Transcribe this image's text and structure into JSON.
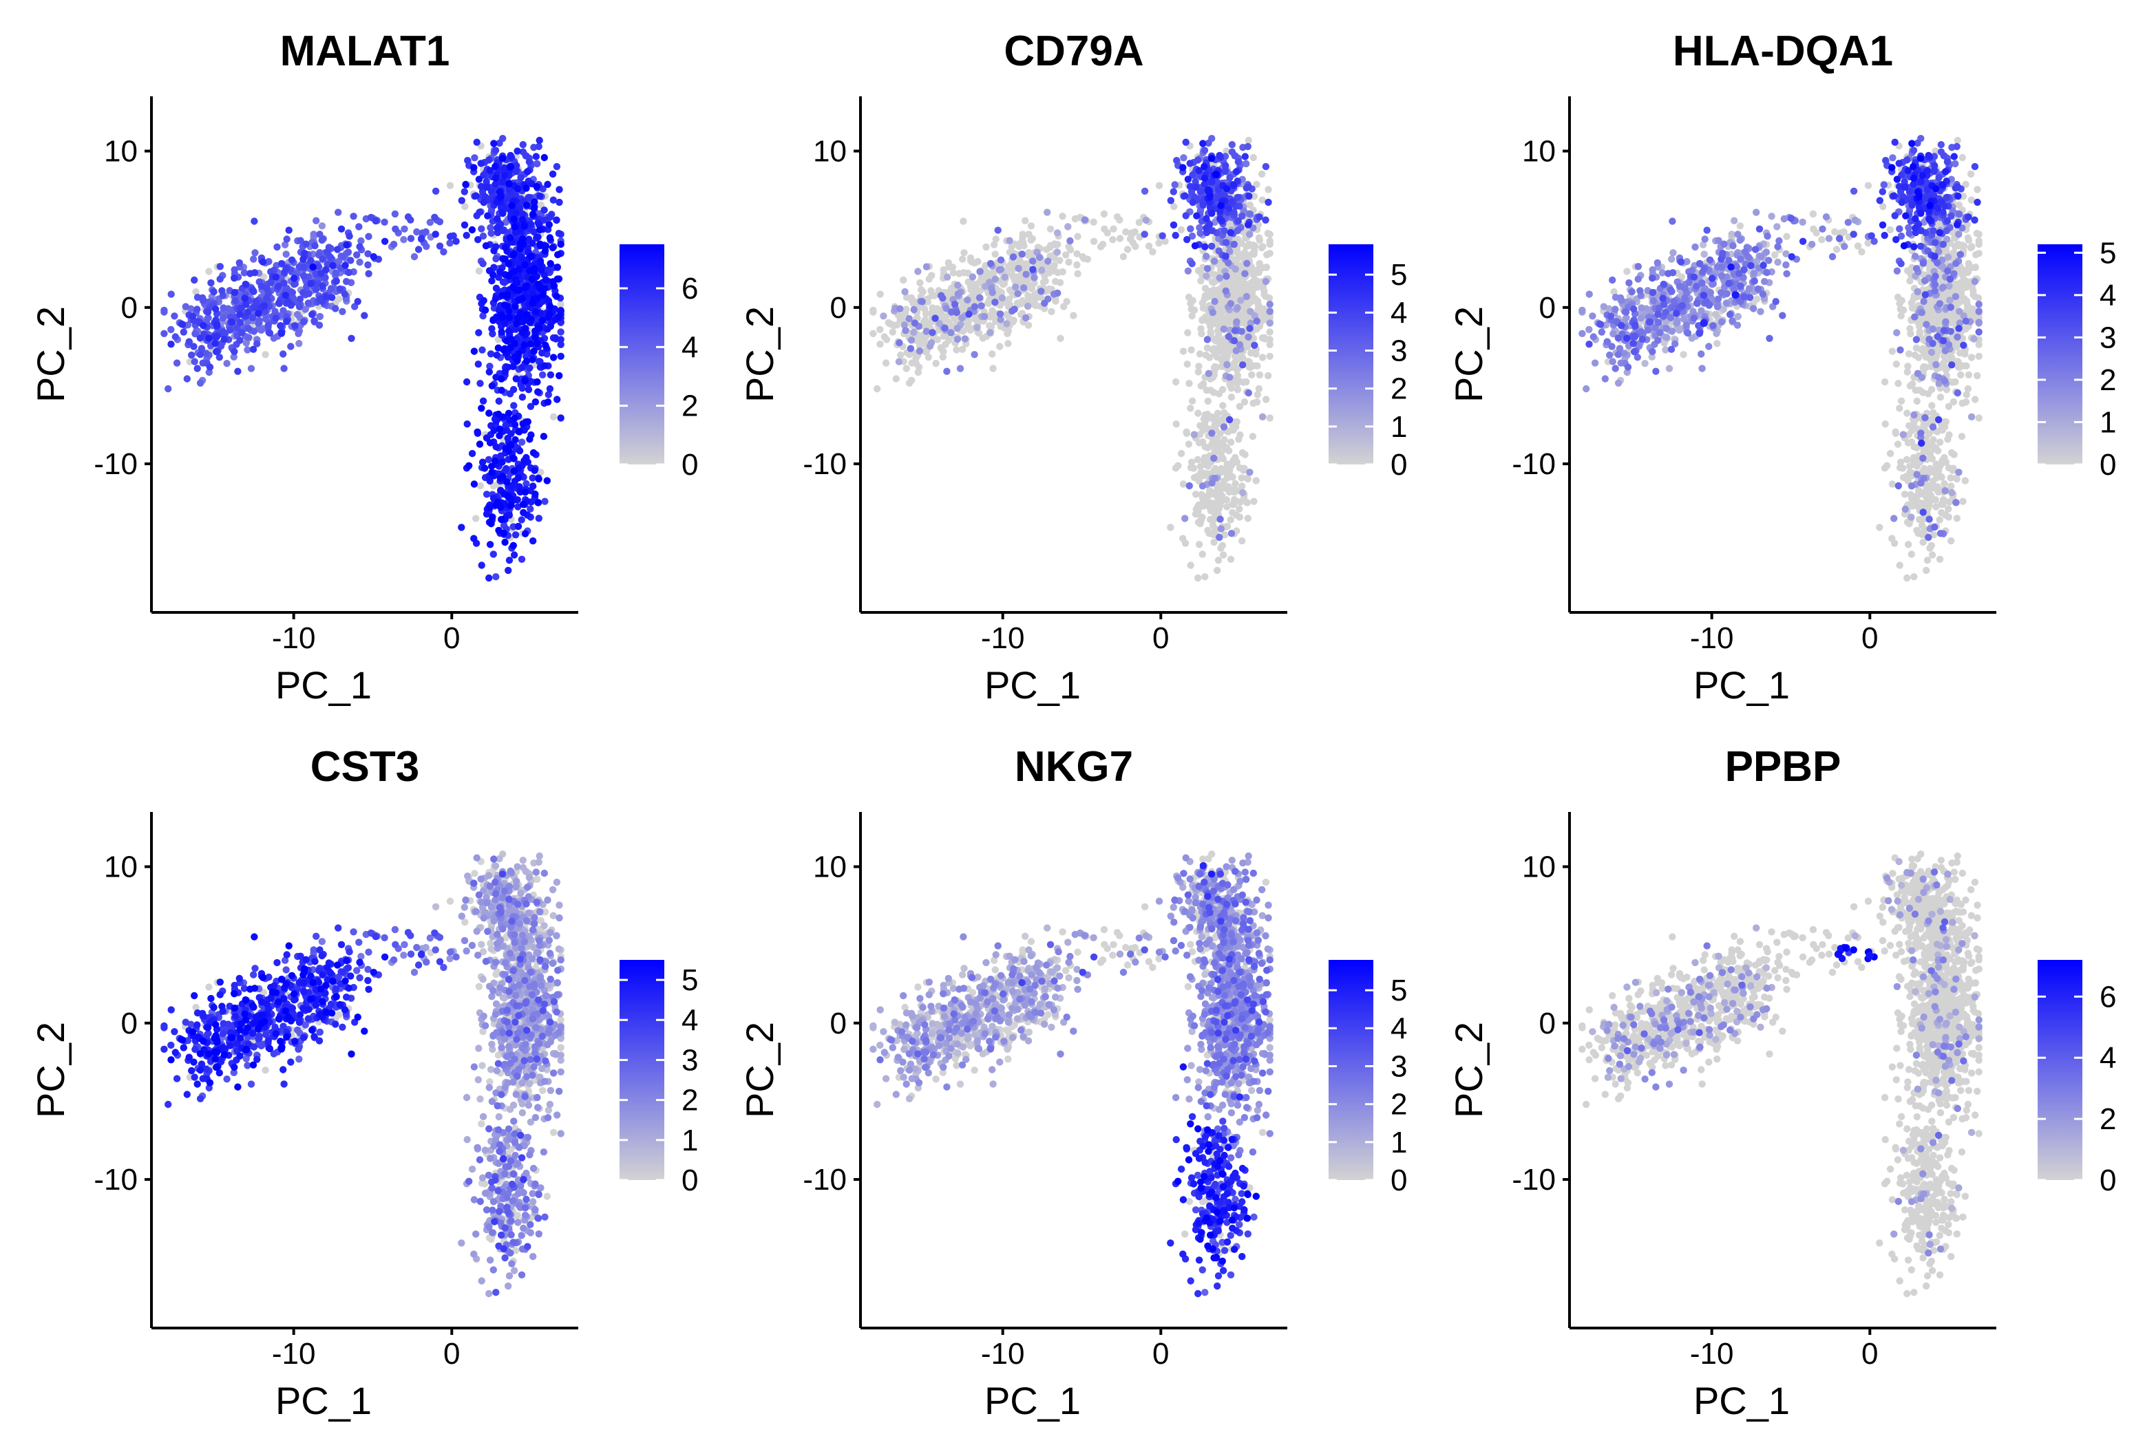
{
  "figure": {
    "background": "#ffffff",
    "low_color": "#D3D3D3",
    "high_color": "#0000FF"
  },
  "chart_data": [
    {
      "type": "scatter",
      "title": "MALAT1",
      "xlabel": "PC_1",
      "ylabel": "PC_2",
      "xlim": [
        -19,
        8
      ],
      "ylim": [
        -19.5,
        13.5
      ],
      "xticks": [
        -10,
        0
      ],
      "yticks": [
        10,
        0,
        -10
      ],
      "xtick_labels": [
        "-10",
        "0"
      ],
      "ytick_labels": [
        "10",
        "0",
        "-10"
      ],
      "color_range": [
        0,
        7.5
      ],
      "legend_ticks": [
        6,
        4,
        2,
        0
      ],
      "legend_tick_labels": [
        "6",
        "4",
        "2",
        "0"
      ],
      "cluster_expression": {
        "left_arm": 4.3,
        "bridge": 4.5,
        "top_cluster": 5.5,
        "right_mid": 6.5,
        "right_lower": 6.6,
        "platelet_bridge": 4.5
      },
      "highlight_points": [
        [
          3.7,
          9.0,
          7.5
        ],
        [
          4.1,
          1.6,
          7.2
        ]
      ]
    },
    {
      "type": "scatter",
      "title": "CD79A",
      "xlabel": "PC_1",
      "ylabel": "PC_2",
      "xlim": [
        -19,
        8
      ],
      "ylim": [
        -19.5,
        13.5
      ],
      "xticks": [
        -10,
        0
      ],
      "yticks": [
        10,
        0,
        -10
      ],
      "xtick_labels": [
        "-10",
        "0"
      ],
      "ytick_labels": [
        "10",
        "0",
        "-10"
      ],
      "color_range": [
        0,
        5.8
      ],
      "legend_ticks": [
        5,
        4,
        3,
        2,
        1,
        0
      ],
      "legend_tick_labels": [
        "5",
        "4",
        "3",
        "2",
        "1",
        "0"
      ],
      "cluster_expression": {
        "left_arm": 0.15,
        "bridge": 0.2,
        "top_cluster": 3.6,
        "right_mid": 0.1,
        "right_lower": 0.05,
        "platelet_bridge": 0.1
      },
      "highlight_points": [
        [
          3.5,
          8.5,
          5.8
        ],
        [
          3.0,
          7.5,
          5.2
        ]
      ]
    },
    {
      "type": "scatter",
      "title": "HLA-DQA1",
      "xlabel": "PC_1",
      "ylabel": "PC_2",
      "xlim": [
        -19,
        8
      ],
      "ylim": [
        -19.5,
        13.5
      ],
      "xticks": [
        -10,
        0
      ],
      "yticks": [
        10,
        0,
        -10
      ],
      "xtick_labels": [
        "-10",
        "0"
      ],
      "ytick_labels": [
        "10",
        "0",
        "-10"
      ],
      "color_range": [
        0,
        5.2
      ],
      "legend_ticks": [
        5,
        4,
        3,
        2,
        1,
        0
      ],
      "legend_tick_labels": [
        "5",
        "4",
        "3",
        "2",
        "1",
        "0"
      ],
      "cluster_expression": {
        "left_arm": 1.6,
        "bridge": 0.6,
        "top_cluster": 3.4,
        "right_mid": 0.2,
        "right_lower": 0.1,
        "platelet_bridge": 0.3
      },
      "highlight_points": [
        [
          -8.5,
          0.8,
          4.5
        ],
        [
          -10.5,
          -1.0,
          4.2
        ]
      ]
    },
    {
      "type": "scatter",
      "title": "CST3",
      "xlabel": "PC_1",
      "ylabel": "PC_2",
      "xlim": [
        -19,
        8
      ],
      "ylim": [
        -19.5,
        13.5
      ],
      "xticks": [
        -10,
        0
      ],
      "yticks": [
        10,
        0,
        -10
      ],
      "xtick_labels": [
        "-10",
        "0"
      ],
      "ytick_labels": [
        "10",
        "0",
        "-10"
      ],
      "color_range": [
        0,
        5.5
      ],
      "legend_ticks": [
        5,
        4,
        3,
        2,
        1,
        0
      ],
      "legend_tick_labels": [
        "5",
        "4",
        "3",
        "2",
        "1",
        "0"
      ],
      "cluster_expression": {
        "left_arm": 4.3,
        "bridge": 3.2,
        "top_cluster": 1.0,
        "right_mid": 1.2,
        "right_lower": 0.8,
        "platelet_bridge": 1.5
      },
      "highlight_points": [
        [
          -13.0,
          -1.7,
          5.5
        ],
        [
          -12.0,
          0.5,
          5.2
        ]
      ]
    },
    {
      "type": "scatter",
      "title": "NKG7",
      "xlabel": "PC_1",
      "ylabel": "PC_2",
      "xlim": [
        -19,
        8
      ],
      "ylim": [
        -19.5,
        13.5
      ],
      "xticks": [
        -10,
        0
      ],
      "yticks": [
        10,
        0,
        -10
      ],
      "xtick_labels": [
        "-10",
        "0"
      ],
      "ytick_labels": [
        "10",
        "0",
        "-10"
      ],
      "color_range": [
        0,
        5.8
      ],
      "legend_ticks": [
        5,
        4,
        3,
        2,
        1,
        0
      ],
      "legend_tick_labels": [
        "5",
        "4",
        "3",
        "2",
        "1",
        "0"
      ],
      "cluster_expression": {
        "left_arm": 1.0,
        "bridge": 0.5,
        "top_cluster": 0.6,
        "right_mid": 1.8,
        "right_lower": 4.6,
        "platelet_bridge": 0.3
      },
      "highlight_points": [
        [
          3.5,
          -15.0,
          5.6
        ],
        [
          4.0,
          -12.0,
          5.4
        ]
      ]
    },
    {
      "type": "scatter",
      "title": "PPBP",
      "xlabel": "PC_1",
      "ylabel": "PC_2",
      "xlim": [
        -19,
        8
      ],
      "ylim": [
        -19.5,
        13.5
      ],
      "xticks": [
        -10,
        0
      ],
      "yticks": [
        10,
        0,
        -10
      ],
      "xtick_labels": [
        "-10",
        "0"
      ],
      "ytick_labels": [
        "10",
        "0",
        "-10"
      ],
      "color_range": [
        0,
        7.2
      ],
      "legend_ticks": [
        6,
        4,
        2,
        0
      ],
      "legend_tick_labels": [
        "6",
        "4",
        "2",
        "0"
      ],
      "cluster_expression": {
        "left_arm": 0.2,
        "bridge": 0.1,
        "top_cluster": 0.05,
        "right_mid": 0.1,
        "right_lower": 0.05,
        "platelet_bridge": 6.8
      },
      "highlight_points": [
        [
          -1.5,
          4.8,
          7.2
        ],
        [
          -2.0,
          4.4,
          6.9
        ],
        [
          0.0,
          4.3,
          6.5
        ]
      ]
    }
  ]
}
